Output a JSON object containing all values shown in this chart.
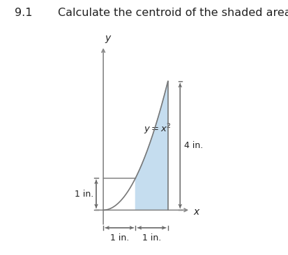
{
  "title_number": "9.1",
  "title_text": "Calculate the centroid of the shaded area.",
  "title_fontsize": 11.5,
  "bg_color": "#ffffff",
  "shaded_color": "#c5ddef",
  "shaded_alpha": 1.0,
  "curve_color": "#777777",
  "axis_color": "#888888",
  "dim_color": "#666666",
  "text_color": "#222222",
  "equation_text": "$y = x^2$",
  "dim_4in_text": "4 in.",
  "dim_1in_left_text": "1 in.",
  "xlabel": "$x$",
  "ylabel": "$y$",
  "xlim": [
    -0.5,
    3.2
  ],
  "ylim": [
    -1.0,
    5.5
  ],
  "fig_width": 4.13,
  "fig_height": 3.67,
  "dpi": 100
}
